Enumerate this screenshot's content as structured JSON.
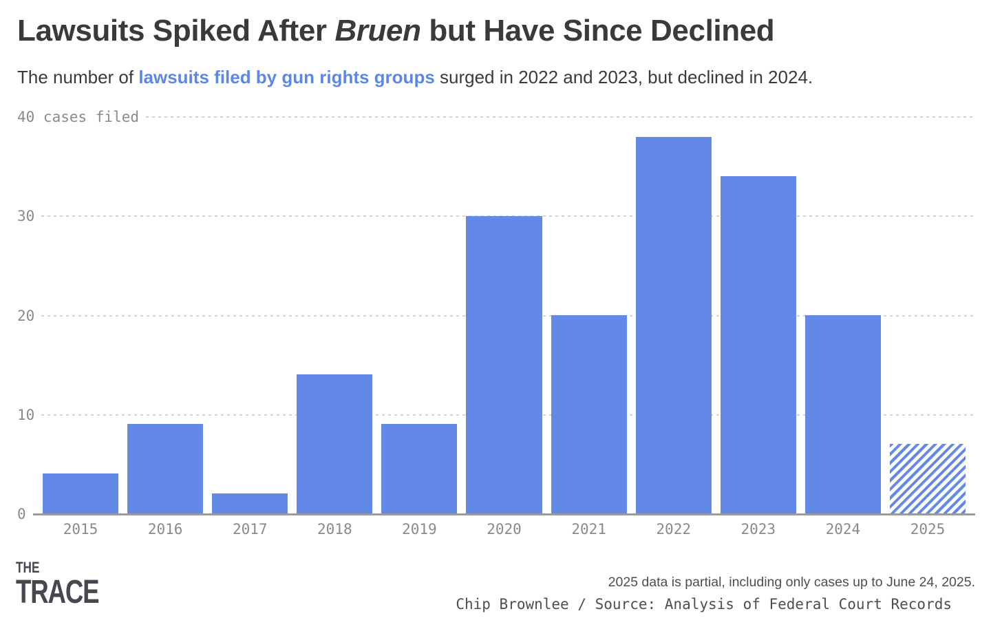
{
  "header": {
    "title": {
      "pre": "Lawsuits Spiked After ",
      "em": "Bruen",
      "post": " but Have Since Declined"
    },
    "subtitle": {
      "pre": "The number of ",
      "link": "lawsuits filed by gun rights groups",
      "post": " surged in 2022 and 2023, but declined in 2024."
    }
  },
  "chart_data": {
    "type": "bar",
    "title": "Lawsuits Spiked After Bruen but Have Since Declined",
    "subtitle": "The number of lawsuits filed by gun rights groups surged in 2022 and 2023, but declined in 2024.",
    "categories": [
      "2015",
      "2016",
      "2017",
      "2018",
      "2019",
      "2020",
      "2021",
      "2022",
      "2023",
      "2024",
      "2025"
    ],
    "values": [
      4,
      9,
      2,
      14,
      9,
      30,
      20,
      38,
      34,
      20,
      7
    ],
    "hatched": [
      false,
      false,
      false,
      false,
      false,
      false,
      false,
      false,
      false,
      false,
      true
    ],
    "xlabel": "",
    "ylabel": "cases filed",
    "ylim": [
      0,
      40
    ],
    "y_ticks": [
      {
        "value": 40,
        "label": "40 cases filed"
      },
      {
        "value": 30,
        "label": "30"
      },
      {
        "value": 20,
        "label": "20"
      },
      {
        "value": 10,
        "label": "10"
      },
      {
        "value": 0,
        "label": "0"
      }
    ],
    "grid": "horizontal-dashed",
    "legend": "none",
    "bar_color": "#6389e8",
    "partial_bar_style": "diagonal-hatch"
  },
  "footer": {
    "logo": {
      "line1": "THE",
      "line2": "TRACE"
    },
    "note": "2025 data is partial, including only cases up to June 24, 2025.",
    "credit": "Chip Brownlee / Source: Analysis of Federal Court Records"
  },
  "colors": {
    "bar_blue": "#6389e8",
    "link_blue": "#5c86ea",
    "title_text": "#3a3a3c",
    "axis_text": "#8a8a8a",
    "gridline": "#d3d3d3",
    "baseline": "#9b9b9b",
    "footer_text": "#4e4e4e",
    "logo_text": "#45484f"
  }
}
